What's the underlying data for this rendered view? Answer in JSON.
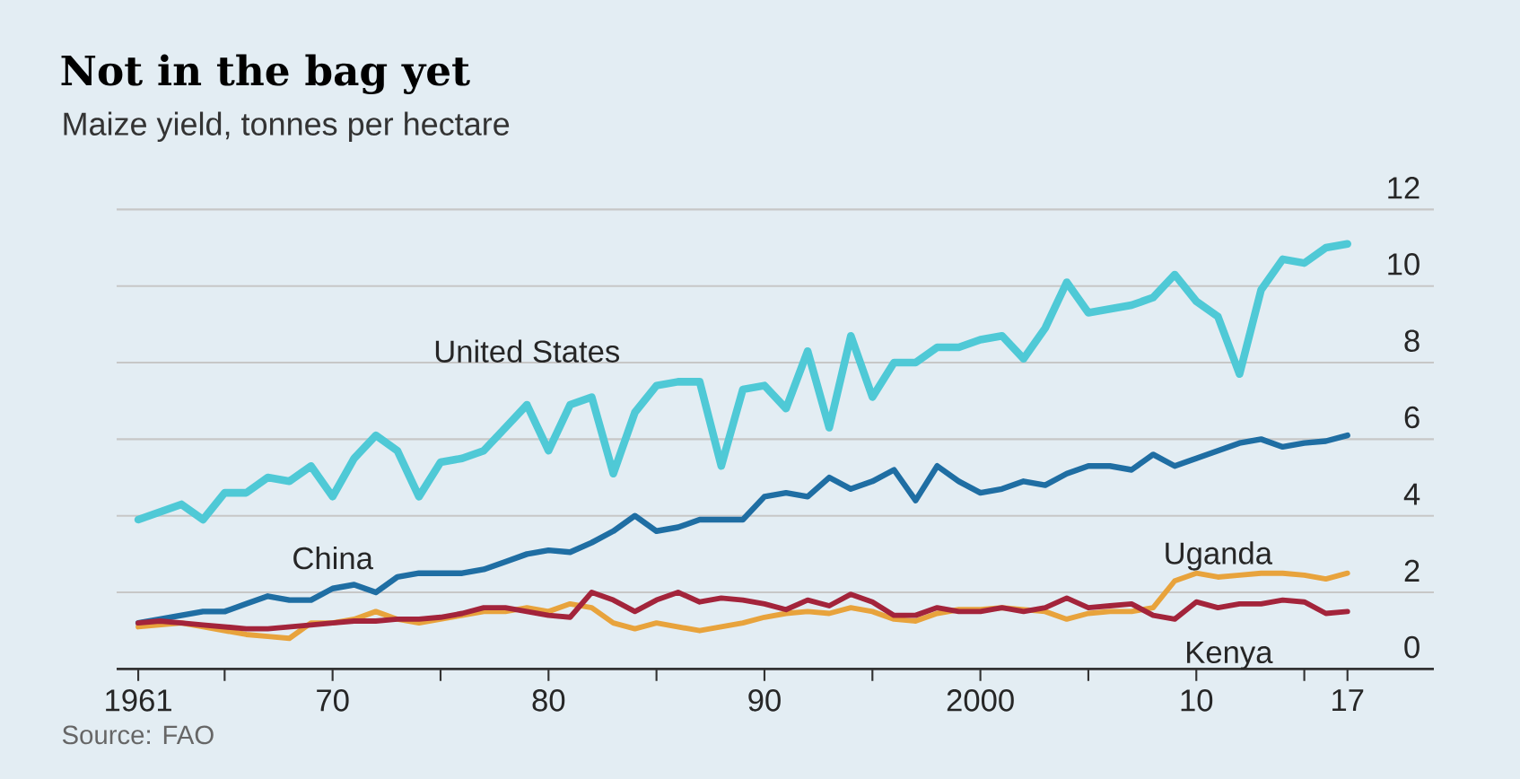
{
  "chart_data": {
    "type": "line",
    "title": "Not in the bag yet",
    "subtitle": "Maize yield, tonnes per hectare",
    "x": [
      1961,
      1962,
      1963,
      1964,
      1965,
      1966,
      1967,
      1968,
      1969,
      1970,
      1971,
      1972,
      1973,
      1974,
      1975,
      1976,
      1977,
      1978,
      1979,
      1980,
      1981,
      1982,
      1983,
      1984,
      1985,
      1986,
      1987,
      1988,
      1989,
      1990,
      1991,
      1992,
      1993,
      1994,
      1995,
      1996,
      1997,
      1998,
      1999,
      2000,
      2001,
      2002,
      2003,
      2004,
      2005,
      2006,
      2007,
      2008,
      2009,
      2010,
      2011,
      2012,
      2013,
      2014,
      2015,
      2016,
      2017
    ],
    "series": [
      {
        "name": "United States",
        "color": "#4fc9d6",
        "values": [
          3.9,
          4.1,
          4.3,
          3.9,
          4.6,
          4.6,
          5.0,
          4.9,
          5.3,
          4.5,
          5.5,
          6.1,
          5.7,
          4.5,
          5.4,
          5.5,
          5.7,
          6.3,
          6.9,
          5.7,
          6.9,
          7.1,
          5.1,
          6.7,
          7.4,
          7.5,
          7.5,
          5.3,
          7.3,
          7.4,
          6.8,
          8.3,
          6.3,
          8.7,
          7.1,
          8.0,
          8.0,
          8.4,
          8.4,
          8.6,
          8.7,
          8.1,
          8.9,
          10.1,
          9.3,
          9.4,
          9.5,
          9.7,
          10.3,
          9.6,
          9.2,
          7.7,
          9.9,
          10.7,
          10.6,
          11.0,
          11.1
        ]
      },
      {
        "name": "China",
        "color": "#1f6ea3",
        "values": [
          1.2,
          1.3,
          1.4,
          1.5,
          1.5,
          1.7,
          1.9,
          1.8,
          1.8,
          2.1,
          2.2,
          2.0,
          2.4,
          2.5,
          2.5,
          2.5,
          2.6,
          2.8,
          3.0,
          3.1,
          3.05,
          3.3,
          3.6,
          4.0,
          3.6,
          3.7,
          3.9,
          3.9,
          3.9,
          4.5,
          4.6,
          4.5,
          5.0,
          4.7,
          4.9,
          5.2,
          4.4,
          5.3,
          4.9,
          4.6,
          4.7,
          4.9,
          4.8,
          5.1,
          5.3,
          5.3,
          5.2,
          5.6,
          5.3,
          5.5,
          5.7,
          5.9,
          6.0,
          5.8,
          5.9,
          5.95,
          6.1
        ]
      },
      {
        "name": "Uganda",
        "color": "#e8a33c",
        "values": [
          1.1,
          1.15,
          1.2,
          1.1,
          1.0,
          0.9,
          0.85,
          0.8,
          1.2,
          1.2,
          1.3,
          1.5,
          1.3,
          1.2,
          1.3,
          1.4,
          1.5,
          1.5,
          1.6,
          1.5,
          1.7,
          1.6,
          1.2,
          1.05,
          1.2,
          1.1,
          1.0,
          1.1,
          1.2,
          1.35,
          1.45,
          1.5,
          1.45,
          1.6,
          1.5,
          1.3,
          1.25,
          1.45,
          1.55,
          1.55,
          1.6,
          1.55,
          1.5,
          1.3,
          1.45,
          1.5,
          1.5,
          1.6,
          2.3,
          2.5,
          2.4,
          2.45,
          2.5,
          2.5,
          2.45,
          2.35,
          2.5
        ]
      },
      {
        "name": "Kenya",
        "color": "#a3243b",
        "values": [
          1.2,
          1.25,
          1.2,
          1.15,
          1.1,
          1.05,
          1.05,
          1.1,
          1.15,
          1.2,
          1.25,
          1.25,
          1.3,
          1.3,
          1.35,
          1.45,
          1.6,
          1.6,
          1.5,
          1.4,
          1.35,
          2.0,
          1.8,
          1.5,
          1.8,
          2.0,
          1.75,
          1.85,
          1.8,
          1.7,
          1.55,
          1.8,
          1.65,
          1.95,
          1.75,
          1.4,
          1.4,
          1.6,
          1.5,
          1.5,
          1.6,
          1.5,
          1.6,
          1.85,
          1.6,
          1.65,
          1.7,
          1.4,
          1.3,
          1.75,
          1.6,
          1.7,
          1.7,
          1.8,
          1.75,
          1.45,
          1.5
        ]
      }
    ],
    "xlim": [
      1960,
      2021
    ],
    "xticks": [
      1961,
      {
        "value": 1965,
        "label": null
      },
      {
        "value": 1970,
        "label": "70"
      },
      {
        "value": 1975,
        "label": null
      },
      {
        "value": 1980,
        "label": "80"
      },
      {
        "value": 1985,
        "label": null
      },
      {
        "value": 1990,
        "label": "90"
      },
      {
        "value": 1995,
        "label": null
      },
      2000,
      {
        "value": 2005,
        "label": null
      },
      {
        "value": 2010,
        "label": "10"
      },
      {
        "value": 2015,
        "label": null
      },
      {
        "value": 2017,
        "label": "17"
      }
    ],
    "ylim": [
      0,
      12
    ],
    "yticks": [
      0,
      2,
      4,
      6,
      8,
      10,
      12
    ],
    "grid": "y",
    "legend": false,
    "marker": "none",
    "line_style": "solid",
    "annotations": [
      "Source: FAO"
    ]
  }
}
